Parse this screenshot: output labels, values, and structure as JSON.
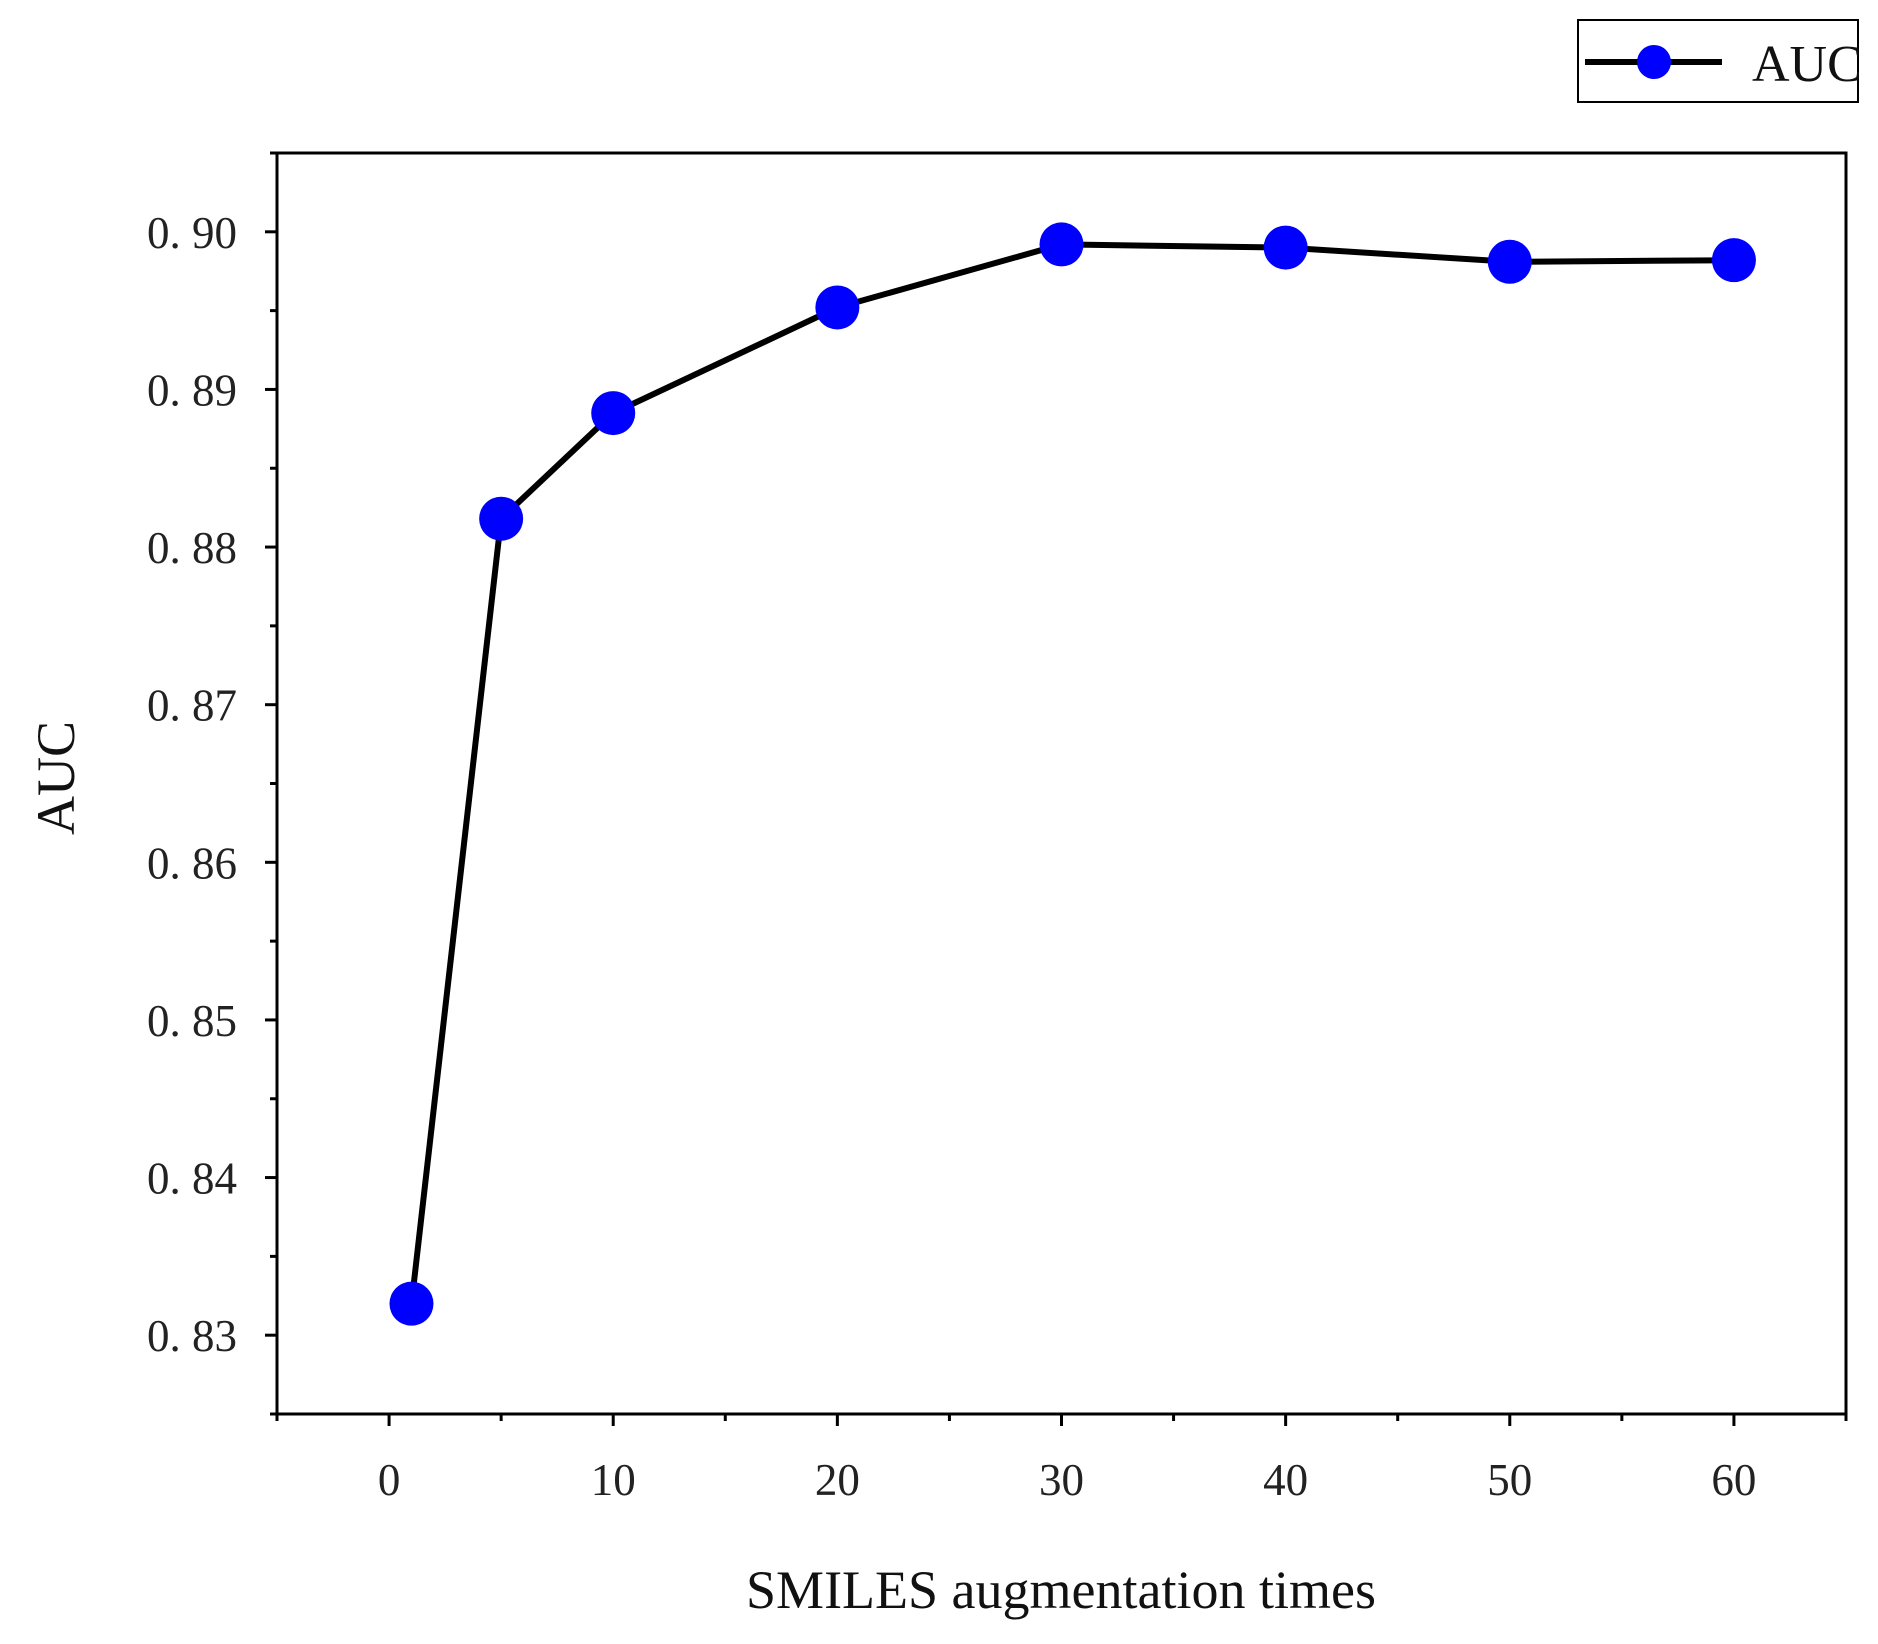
{
  "chart_data": {
    "type": "line",
    "title": "",
    "xlabel": "SMILES augmentation times",
    "ylabel": "AUC",
    "xlim": [
      -5,
      65
    ],
    "ylim": [
      0.825,
      0.905
    ],
    "x_ticks": [
      0,
      10,
      20,
      30,
      40,
      50,
      60
    ],
    "x_tick_labels": [
      "0",
      "10",
      "20",
      "30",
      "40",
      "50",
      "60"
    ],
    "y_ticks": [
      0.83,
      0.84,
      0.85,
      0.86,
      0.87,
      0.88,
      0.89,
      0.9
    ],
    "y_tick_labels": [
      "0. 83",
      "0. 84",
      "0. 85",
      "0. 86",
      "0. 87",
      "0. 88",
      "0. 89",
      "0. 90"
    ],
    "grid": false,
    "legend_position": "top-right",
    "series": [
      {
        "name": "AUC",
        "x": [
          1,
          5,
          10,
          20,
          30,
          40,
          50,
          60
        ],
        "values": [
          0.832,
          0.8818,
          0.8885,
          0.8952,
          0.8992,
          0.899,
          0.8981,
          0.8982
        ],
        "line_color": "#000000",
        "marker_color": "#0000ff"
      }
    ]
  }
}
